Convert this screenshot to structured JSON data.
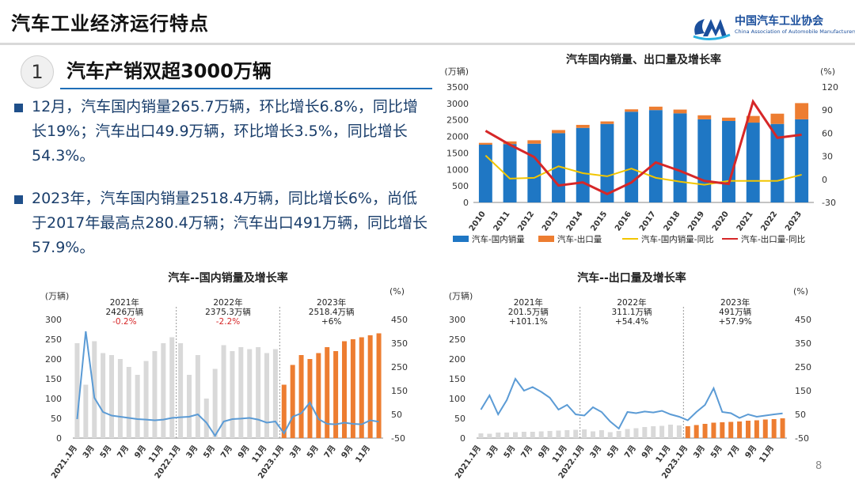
{
  "header": {
    "title": "汽车工业经济运行特点",
    "logo_name": "中国汽车工业协会",
    "logo_sub": "China Association of Automobile Manufacturers"
  },
  "section": {
    "number": "1",
    "title": "汽车产销双超3000万辆"
  },
  "bullets": [
    "12月，汽车国内销量265.7万辆，环比增长6.8%，同比增长19%；汽车出口49.9万辆，环比增长3.5%，同比增长54.3%。",
    "2023年，汽车国内销量2518.4万辆，同比增长6%，尚低于2017年最高点280.4万辆；汽车出口491万辆，同比增长57.9%。"
  ],
  "page_number": "8",
  "colors": {
    "blue": "#1f77c4",
    "orange": "#ed7d31",
    "yellow": "#f2c500",
    "red": "#d62728",
    "gray_bar": "#d9d9d9",
    "line_blue": "#5b9bd5"
  },
  "chart_data": [
    {
      "type": "bar",
      "title": "汽车国内销量、出口量及增长率",
      "left_unit": "(万辆)",
      "right_unit": "(%)",
      "categories": [
        "2010",
        "2011",
        "2012",
        "2013",
        "2014",
        "2015",
        "2016",
        "2017",
        "2018",
        "2019",
        "2020",
        "2021",
        "2022",
        "2023"
      ],
      "ylim": [
        0,
        3500
      ],
      "y_ticks": [
        0,
        500,
        1000,
        1500,
        2000,
        2500,
        3000,
        3500
      ],
      "y2lim": [
        -30,
        120
      ],
      "y2_ticks": [
        -30,
        0,
        30,
        60,
        90,
        120
      ],
      "series": [
        {
          "name": "汽车-国内销量",
          "kind": "bar",
          "values": [
            1750,
            1770,
            1780,
            2100,
            2260,
            2380,
            2750,
            2800,
            2700,
            2520,
            2470,
            2420,
            2380,
            2520
          ]
        },
        {
          "name": "汽车-出口量",
          "kind": "bar_stack",
          "values": [
            56,
            81,
            105,
            95,
            91,
            76,
            73,
            104,
            115,
            122,
            100,
            201,
            311,
            491
          ]
        },
        {
          "name": "汽车-国内销量-同比",
          "kind": "line",
          "axis": "y2",
          "values": [
            31,
            1,
            2,
            17,
            8,
            4,
            14,
            2,
            -3,
            -7,
            -2,
            -2,
            -2,
            6
          ]
        },
        {
          "name": "汽车-出口量-同比",
          "kind": "line",
          "axis": "y2",
          "values": [
            63,
            45,
            29,
            -8,
            -4,
            -19,
            -4,
            22,
            11,
            -2,
            -6,
            101,
            54,
            58
          ]
        }
      ]
    },
    {
      "type": "bar",
      "title": "汽车--国内销量及增长率",
      "left_unit": "(万辆)",
      "right_unit": "(%)",
      "ylim": [
        0,
        300
      ],
      "y_ticks": [
        0,
        50,
        100,
        150,
        200,
        250,
        300
      ],
      "y2lim": [
        -50,
        450
      ],
      "y2_ticks": [
        -50,
        50,
        150,
        250,
        350,
        450
      ],
      "x_tick_labels": [
        "2021.1月",
        "3月",
        "5月",
        "7月",
        "9月",
        "11月",
        "2022.1月",
        "3月",
        "5月",
        "7月",
        "9月",
        "11月",
        "2023.1月",
        "3月",
        "5月",
        "7月",
        "9月",
        "11月"
      ],
      "annotations": [
        {
          "year": "2021年",
          "value": "2426万辆",
          "growth": "-0.2%"
        },
        {
          "year": "2022年",
          "value": "2375.3万辆",
          "growth": "-2.2%"
        },
        {
          "year": "2023年",
          "value": "2518.4万辆",
          "growth": "+6%"
        }
      ],
      "series": [
        {
          "name": "国内销量",
          "kind": "bar",
          "values": [
            240,
            135,
            245,
            215,
            210,
            200,
            180,
            160,
            195,
            220,
            240,
            255,
            240,
            160,
            210,
            100,
            175,
            235,
            220,
            230,
            225,
            230,
            215,
            225,
            135,
            185,
            210,
            200,
            215,
            230,
            220,
            245,
            250,
            255,
            260,
            265
          ]
        },
        {
          "name": "增长率",
          "kind": "line",
          "axis": "y2",
          "values": [
            30,
            400,
            120,
            60,
            45,
            40,
            35,
            30,
            28,
            25,
            28,
            35,
            38,
            40,
            50,
            15,
            -40,
            20,
            30,
            32,
            35,
            28,
            15,
            20,
            -30,
            40,
            55,
            100,
            30,
            10,
            8,
            15,
            10,
            8,
            25,
            19
          ]
        }
      ]
    },
    {
      "type": "bar",
      "title": "汽车--出口量及增长率",
      "left_unit": "(万辆)",
      "right_unit": "(%)",
      "ylim": [
        0,
        300
      ],
      "y_ticks": [
        0,
        50,
        100,
        150,
        200,
        250,
        300
      ],
      "y2lim": [
        -50,
        450
      ],
      "y2_ticks": [
        -50,
        50,
        150,
        250,
        350,
        450
      ],
      "x_tick_labels": [
        "2021.1月",
        "3月",
        "5月",
        "7月",
        "9月",
        "11月",
        "2022.1月",
        "3月",
        "5月",
        "7月",
        "9月",
        "11月",
        "2023.1月",
        "3月",
        "5月",
        "7月",
        "9月",
        "11月"
      ],
      "annotations": [
        {
          "year": "2021年",
          "value": "201.5万辆",
          "growth": "+101.1%"
        },
        {
          "year": "2022年",
          "value": "311.1万辆",
          "growth": "+54.4%"
        },
        {
          "year": "2023年",
          "value": "491万辆",
          "growth": "+57.9%"
        }
      ],
      "series": [
        {
          "name": "出口量",
          "kind": "bar",
          "values": [
            12,
            11,
            14,
            14,
            15,
            16,
            16,
            17,
            18,
            19,
            20,
            21,
            22,
            17,
            20,
            15,
            18,
            23,
            25,
            28,
            30,
            31,
            34,
            32,
            30,
            33,
            36,
            39,
            40,
            41,
            42,
            44,
            45,
            47,
            48,
            50
          ]
        },
        {
          "name": "增长率",
          "kind": "line",
          "axis": "y2",
          "values": [
            70,
            130,
            50,
            110,
            200,
            150,
            165,
            145,
            120,
            70,
            90,
            50,
            45,
            80,
            60,
            20,
            -10,
            60,
            55,
            62,
            58,
            65,
            50,
            40,
            25,
            60,
            90,
            160,
            60,
            55,
            35,
            50,
            40,
            45,
            50,
            54
          ]
        }
      ]
    }
  ]
}
